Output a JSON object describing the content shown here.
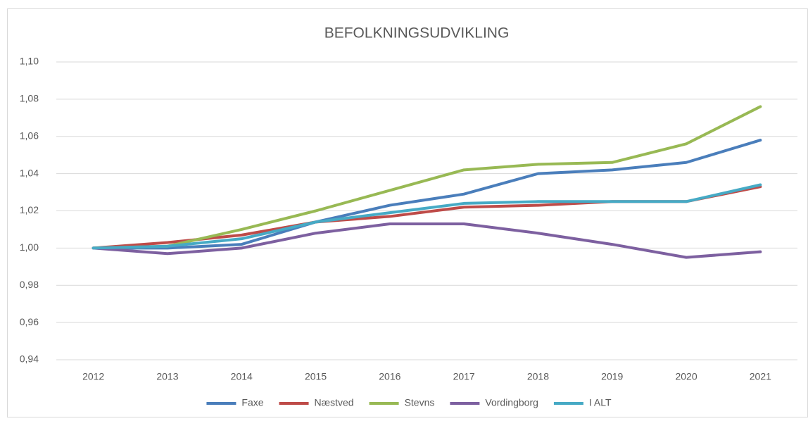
{
  "chart_data": {
    "type": "line",
    "title": "BEFOLKNINGSUDVIKLING",
    "categories": [
      "2012",
      "2013",
      "2014",
      "2015",
      "2016",
      "2017",
      "2018",
      "2019",
      "2020",
      "2021"
    ],
    "series": [
      {
        "name": "Faxe",
        "color": "#4a7ebb",
        "values": [
          1.0,
          1.0,
          1.002,
          1.014,
          1.023,
          1.029,
          1.04,
          1.042,
          1.046,
          1.058
        ]
      },
      {
        "name": "Næstved",
        "color": "#be4b48",
        "values": [
          1.0,
          1.003,
          1.007,
          1.014,
          1.017,
          1.022,
          1.023,
          1.025,
          1.025,
          1.033
        ]
      },
      {
        "name": "Stevns",
        "color": "#98b954",
        "values": [
          1.0,
          1.001,
          1.01,
          1.02,
          1.031,
          1.042,
          1.045,
          1.046,
          1.056,
          1.076
        ]
      },
      {
        "name": "Vordingborg",
        "color": "#7d60a0",
        "values": [
          1.0,
          0.997,
          1.0,
          1.008,
          1.013,
          1.013,
          1.008,
          1.002,
          0.995,
          0.998
        ]
      },
      {
        "name": "I ALT",
        "color": "#46aac5",
        "values": [
          1.0,
          1.001,
          1.005,
          1.014,
          1.019,
          1.024,
          1.025,
          1.025,
          1.025,
          1.034
        ]
      }
    ],
    "ylim": [
      0.94,
      1.1
    ],
    "yticks": [
      {
        "value": 0.94,
        "label": "0,94"
      },
      {
        "value": 0.96,
        "label": "0,96"
      },
      {
        "value": 0.98,
        "label": "0,98"
      },
      {
        "value": 1.0,
        "label": "1,00"
      },
      {
        "value": 1.02,
        "label": "1,02"
      },
      {
        "value": 1.04,
        "label": "1,04"
      },
      {
        "value": 1.06,
        "label": "1,06"
      },
      {
        "value": 1.08,
        "label": "1,08"
      },
      {
        "value": 1.1,
        "label": "1,10"
      }
    ],
    "grid": true,
    "legend": "bottom"
  }
}
